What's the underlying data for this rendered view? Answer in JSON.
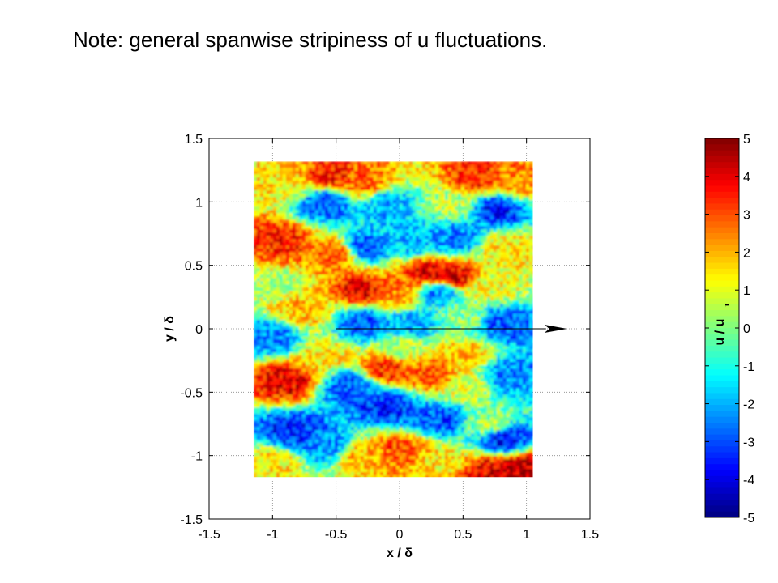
{
  "slide": {
    "title": "Note: general spanwise stripiness of u fluctuations."
  },
  "chart_data": {
    "type": "heatmap",
    "title": "",
    "xlabel": "x / δ",
    "ylabel": "y / δ",
    "xlim": [
      -1.5,
      1.5
    ],
    "ylim": [
      -1.5,
      1.5
    ],
    "x_ticks": [
      "-1.5",
      "-1",
      "-0.5",
      "0",
      "0.5",
      "1",
      "1.5"
    ],
    "y_ticks": [
      "1.5",
      "1",
      "0.5",
      "0",
      "-0.5",
      "-1",
      "-1.5"
    ],
    "grid": true,
    "field_extent": {
      "x": [
        -1.15,
        1.05
      ],
      "y": [
        -1.17,
        1.32
      ]
    },
    "arrow": {
      "from": [
        -0.5,
        0
      ],
      "to": [
        1.32,
        0
      ]
    },
    "colorbar": {
      "label": "u / u",
      "label_subscript": "τ",
      "range": [
        -5,
        5
      ],
      "ticks": [
        "5",
        "4",
        "3",
        "2",
        "1",
        "0",
        "-1",
        "-2",
        "-3",
        "-4",
        "-5"
      ],
      "colormap": "jet"
    },
    "field_blobs": [
      {
        "x": -0.9,
        "y": 1.15,
        "v": 1.5
      },
      {
        "x": -0.55,
        "y": 1.22,
        "v": 3.5
      },
      {
        "x": -0.3,
        "y": 1.18,
        "v": 2.8
      },
      {
        "x": 0.6,
        "y": 1.2,
        "v": 3.5
      },
      {
        "x": 0.9,
        "y": 1.18,
        "v": 2.5
      },
      {
        "x": -0.6,
        "y": 1.0,
        "v": -3.0
      },
      {
        "x": -0.1,
        "y": 0.98,
        "v": -2.0
      },
      {
        "x": 0.4,
        "y": 1.0,
        "v": 0.5
      },
      {
        "x": 0.75,
        "y": 0.95,
        "v": -3.5
      },
      {
        "x": -0.95,
        "y": 0.7,
        "v": 3.5
      },
      {
        "x": -0.5,
        "y": 0.6,
        "v": 3.0
      },
      {
        "x": -0.3,
        "y": 0.65,
        "v": -3.0
      },
      {
        "x": 0.1,
        "y": 0.7,
        "v": -2.0
      },
      {
        "x": 0.4,
        "y": 0.72,
        "v": -2.5
      },
      {
        "x": 0.85,
        "y": 0.65,
        "v": 1.5
      },
      {
        "x": 0.2,
        "y": 0.45,
        "v": 4.0
      },
      {
        "x": 0.4,
        "y": 0.42,
        "v": 4.2
      },
      {
        "x": -0.3,
        "y": 0.32,
        "v": 3.8
      },
      {
        "x": 0.0,
        "y": 0.3,
        "v": 2.5
      },
      {
        "x": 0.3,
        "y": 0.3,
        "v": -2.5
      },
      {
        "x": 0.7,
        "y": 0.35,
        "v": 1.0
      },
      {
        "x": -1.0,
        "y": 0.35,
        "v": 0.5
      },
      {
        "x": -0.8,
        "y": 0.15,
        "v": 2.0
      },
      {
        "x": -0.3,
        "y": 0.05,
        "v": -3.0
      },
      {
        "x": 0.1,
        "y": 0.05,
        "v": -2.0
      },
      {
        "x": 0.5,
        "y": 0.1,
        "v": 0.0
      },
      {
        "x": 0.8,
        "y": 0.05,
        "v": -3.0
      },
      {
        "x": -1.0,
        "y": -0.05,
        "v": -2.5
      },
      {
        "x": -0.6,
        "y": -0.2,
        "v": 1.5
      },
      {
        "x": 0.0,
        "y": -0.15,
        "v": 0.5
      },
      {
        "x": 0.5,
        "y": -0.2,
        "v": 1.8
      },
      {
        "x": -0.9,
        "y": -0.4,
        "v": 4.0
      },
      {
        "x": -0.4,
        "y": -0.45,
        "v": -3.0
      },
      {
        "x": -0.1,
        "y": -0.3,
        "v": 3.5
      },
      {
        "x": 0.25,
        "y": -0.35,
        "v": 3.0
      },
      {
        "x": 0.5,
        "y": -0.45,
        "v": 0.8
      },
      {
        "x": 0.85,
        "y": -0.35,
        "v": -2.5
      },
      {
        "x": -0.1,
        "y": -0.6,
        "v": -3.5
      },
      {
        "x": 0.3,
        "y": -0.7,
        "v": -3.0
      },
      {
        "x": -0.85,
        "y": -0.8,
        "v": -3.5
      },
      {
        "x": -0.6,
        "y": -0.9,
        "v": -2.5
      },
      {
        "x": 0.7,
        "y": -0.75,
        "v": 0.5
      },
      {
        "x": 0.8,
        "y": -0.85,
        "v": -3.8
      },
      {
        "x": -1.0,
        "y": -1.05,
        "v": 1.5
      },
      {
        "x": -0.3,
        "y": -1.0,
        "v": 2.0
      },
      {
        "x": 0.0,
        "y": -0.95,
        "v": 3.0
      },
      {
        "x": 0.3,
        "y": -1.05,
        "v": 1.5
      },
      {
        "x": 0.7,
        "y": -1.12,
        "v": 4.0
      },
      {
        "x": 0.95,
        "y": -1.1,
        "v": 4.5
      }
    ]
  }
}
